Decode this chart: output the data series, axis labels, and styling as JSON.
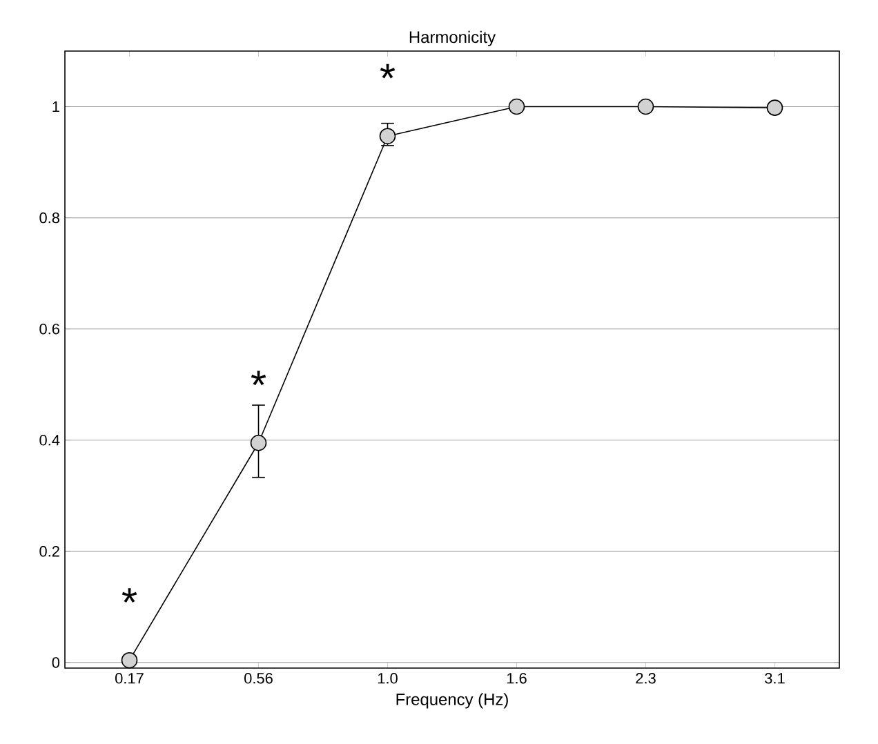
{
  "chart_data": {
    "type": "line",
    "title": "Harmonicity",
    "xlabel": "Frequency (Hz)",
    "categories": [
      "0.17",
      "0.56",
      "1.0",
      "1.6",
      "2.3",
      "3.1"
    ],
    "series": [
      {
        "color": "#000000",
        "values": [
          0.004,
          0.395,
          0.947,
          1.0,
          1.0,
          0.998
        ],
        "errors": [
          null,
          [
            0.333,
            0.463
          ],
          [
            0.93,
            0.97
          ],
          null,
          null,
          null
        ]
      }
    ],
    "ylim": [
      -0.01,
      1.1
    ],
    "yticks": [
      0,
      0.2,
      0.4,
      0.6,
      0.8,
      1
    ],
    "grid": "y",
    "marker": "circle",
    "line_style": "solid",
    "annotations": [
      "*",
      "*",
      "*"
    ]
  }
}
